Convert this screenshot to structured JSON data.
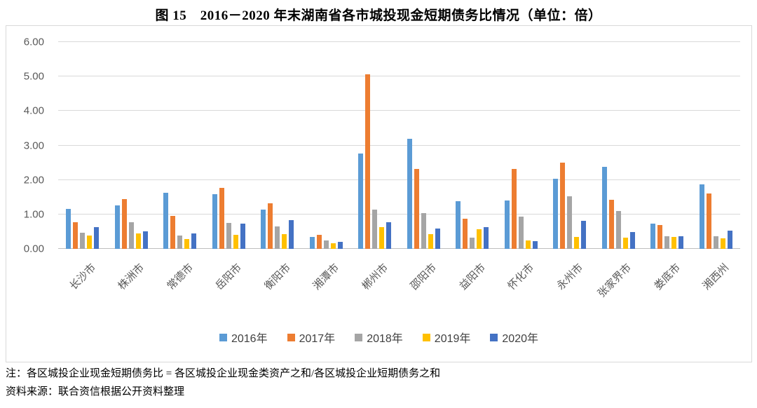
{
  "title": "图 15　2016－2020 年末湖南省各市城投现金短期债务比情况（单位：倍）",
  "notes": {
    "line1": "注：各区城投企业现金短期债务比 = 各区城投企业现金类资产之和/各区城投企业短期债务之和",
    "line2": "资料来源：联合资信根据公开资料整理"
  },
  "chart_data": {
    "type": "bar",
    "title": "图 15　2016－2020 年末湖南省各市城投现金短期债务比情况（单位：倍）",
    "unit": "倍",
    "categories": [
      "长沙市",
      "株洲市",
      "常德市",
      "岳阳市",
      "衡阳市",
      "湘潭市",
      "郴州市",
      "邵阳市",
      "益阳市",
      "怀化市",
      "永州市",
      "张家界市",
      "娄底市",
      "湘西州"
    ],
    "series": [
      {
        "name": "2016年",
        "color": "#5B9BD5",
        "values": [
          1.15,
          1.27,
          1.62,
          1.58,
          1.13,
          0.35,
          2.76,
          3.19,
          1.39,
          1.4,
          2.04,
          2.37,
          0.74,
          1.87
        ]
      },
      {
        "name": "2017年",
        "color": "#ED7D31",
        "values": [
          0.78,
          1.45,
          0.95,
          1.77,
          1.32,
          0.4,
          5.07,
          2.32,
          0.88,
          2.32,
          2.5,
          1.43,
          0.7,
          1.61
        ]
      },
      {
        "name": "2018年",
        "color": "#A5A5A5",
        "values": [
          0.46,
          0.78,
          0.38,
          0.75,
          0.65,
          0.24,
          1.14,
          1.03,
          0.33,
          0.93,
          1.53,
          1.09,
          0.36,
          0.36
        ]
      },
      {
        "name": "2019年",
        "color": "#FFC000",
        "values": [
          0.39,
          0.44,
          0.28,
          0.41,
          0.42,
          0.17,
          0.64,
          0.42,
          0.57,
          0.25,
          0.34,
          0.33,
          0.34,
          0.3
        ]
      },
      {
        "name": "2020年",
        "color": "#4472C4",
        "values": [
          0.63,
          0.5,
          0.45,
          0.73,
          0.83,
          0.2,
          0.78,
          0.6,
          0.63,
          0.22,
          0.81,
          0.49,
          0.36,
          0.53
        ]
      }
    ],
    "ylim": [
      0,
      6
    ],
    "yticks": [
      "0.00",
      "1.00",
      "2.00",
      "3.00",
      "4.00",
      "5.00",
      "6.00"
    ],
    "grid": true,
    "legend_position": "bottom",
    "gridline_color": "#D9D9D9",
    "axis_text_color": "#595959"
  }
}
